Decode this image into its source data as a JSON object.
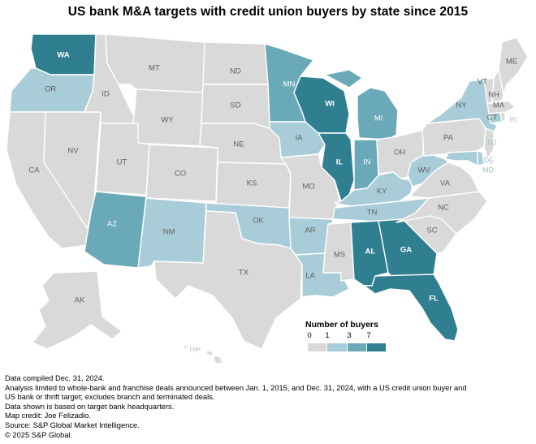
{
  "title": "US bank M&A targets with credit union buyers by state since 2015",
  "colors": {
    "none": "#d9d9d9",
    "low": "#a9cdd8",
    "mid": "#6aa9b8",
    "high": "#2f7f91",
    "label_dark": "#ffffff",
    "label_gray": "#5f5f5f"
  },
  "legend": {
    "title": "Number of buyers",
    "ticks": [
      "0",
      "1",
      "3",
      "7"
    ],
    "bins": [
      "none",
      "low",
      "mid",
      "high"
    ]
  },
  "states": {
    "WA": "high",
    "OR": "low",
    "CA": "none",
    "NV": "none",
    "ID": "none",
    "MT": "none",
    "WY": "none",
    "UT": "none",
    "AZ": "mid",
    "CO": "none",
    "NM": "low",
    "ND": "none",
    "SD": "none",
    "NE": "none",
    "KS": "none",
    "OK": "low",
    "TX": "none",
    "MN": "mid",
    "IA": "low",
    "MO": "none",
    "AR": "low",
    "LA": "low",
    "WI": "high",
    "IL": "high",
    "MI": "mid",
    "IN": "mid",
    "OH": "none",
    "KY": "low",
    "TN": "low",
    "MS": "none",
    "AL": "high",
    "GA": "high",
    "FL": "high",
    "SC": "none",
    "NC": "none",
    "VA": "none",
    "WV": "low",
    "PA": "none",
    "NY": "low",
    "ME": "none",
    "VT": "none",
    "NH": "none",
    "MA": "none",
    "CT": "low",
    "RI": "none",
    "NJ": "none",
    "DE": "low",
    "MD": "low",
    "AK": "none",
    "HI": "none"
  },
  "notes": [
    "Data compiled Dec. 31, 2024.",
    "Analysis limited to whole-bank and franchise deals announced between Jan. 1, 2015, and Dec. 31, 2024, with a US credit union buyer and",
    "US bank or thrift target; excludes branch and terminated deals.",
    "Data shown is based on target bank headquarters.",
    "Map credit: Joe Felizadio.",
    "Source: S&P Global Market Intelligence.",
    "© 2025 S&P Global."
  ]
}
